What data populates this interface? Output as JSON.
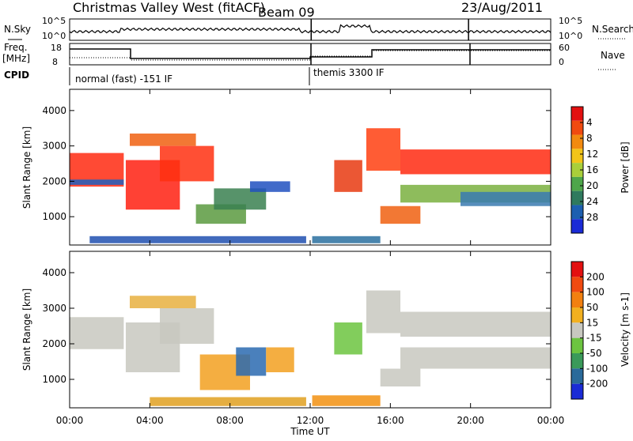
{
  "header": {
    "station": "Christmas Valley West (fitACF)",
    "beam": "Beam 09",
    "date": "23/Aug/2011"
  },
  "noise_panel": {
    "left_label": "N.Sky",
    "left_ticks": [
      "10^5",
      "10^0"
    ],
    "right_ticks": [
      "10^5",
      "10^0"
    ],
    "right_label": "N.Search"
  },
  "freq_panel": {
    "left_label_1": "Freq.",
    "left_label_2": "[MHz]",
    "left_ticks": [
      "18",
      "8"
    ],
    "right_ticks": [
      "60",
      "0"
    ],
    "right_label": "Nave"
  },
  "cpid": {
    "label": "CPID",
    "programs": [
      {
        "name": "normal (fast) -151 IF",
        "start_hour": 0,
        "end_hour": 12
      },
      {
        "name": "themis 3300 IF",
        "start_hour": 12,
        "end_hour": 24
      }
    ]
  },
  "time_axis": {
    "label": "Time UT",
    "ticks": [
      "00:00",
      "04:00",
      "08:00",
      "12:00",
      "16:00",
      "20:00",
      "00:00"
    ]
  },
  "chart_data": [
    {
      "type": "heatmap",
      "name": "power",
      "ylabel": "Slant Range [km]",
      "yticks": [
        1000,
        2000,
        3000,
        4000
      ],
      "ylim": [
        200,
        4600
      ],
      "xlim_hours": [
        0,
        24
      ],
      "colorbar": {
        "label": "Power [dB]",
        "ticks": [
          "4",
          "8",
          "12",
          "16",
          "20",
          "24",
          "28"
        ],
        "colors": [
          "#1a2bd6",
          "#1d5fb0",
          "#2f7a5e",
          "#4ea64a",
          "#a9cf3a",
          "#f2c418",
          "#f28a10",
          "#f04a10",
          "#e31010"
        ]
      },
      "regions": [
        {
          "t0": 0,
          "t1": 2.7,
          "r0": 1850,
          "r1": 2800,
          "color": "#ff2a10"
        },
        {
          "t0": 0,
          "t1": 2.7,
          "r0": 1900,
          "r1": 2050,
          "color": "#2060c0"
        },
        {
          "t0": 2.8,
          "t1": 5.5,
          "r0": 1200,
          "r1": 2600,
          "color": "#ff2010"
        },
        {
          "t0": 3.0,
          "t1": 6.3,
          "r0": 3000,
          "r1": 3350,
          "color": "#f06010"
        },
        {
          "t0": 4.5,
          "t1": 7.2,
          "r0": 2000,
          "r1": 3000,
          "color": "#ff3010"
        },
        {
          "t0": 6.3,
          "t1": 8.8,
          "r0": 800,
          "r1": 1350,
          "color": "#5a9a40"
        },
        {
          "t0": 7.2,
          "t1": 9.8,
          "r0": 1200,
          "r1": 1800,
          "color": "#3a8050"
        },
        {
          "t0": 9.0,
          "t1": 11.0,
          "r0": 1700,
          "r1": 2000,
          "color": "#2050c0"
        },
        {
          "t0": 1.0,
          "t1": 11.8,
          "r0": 250,
          "r1": 450,
          "color": "#2050b0"
        },
        {
          "t0": 12.1,
          "t1": 15.5,
          "r0": 250,
          "r1": 450,
          "color": "#2a70a0"
        },
        {
          "t0": 13.2,
          "t1": 14.6,
          "r0": 1700,
          "r1": 2600,
          "color": "#e83a10"
        },
        {
          "t0": 14.8,
          "t1": 16.5,
          "r0": 2300,
          "r1": 3500,
          "color": "#ff4010"
        },
        {
          "t0": 16.5,
          "t1": 24,
          "r0": 2200,
          "r1": 2900,
          "color": "#ff2a10"
        },
        {
          "t0": 16.5,
          "t1": 24,
          "r0": 1400,
          "r1": 1900,
          "color": "#7ab040"
        },
        {
          "t0": 15.5,
          "t1": 17.5,
          "r0": 800,
          "r1": 1300,
          "color": "#f06010"
        },
        {
          "t0": 19.5,
          "t1": 24,
          "r0": 1300,
          "r1": 1700,
          "color": "#3a7ab0"
        }
      ]
    },
    {
      "type": "heatmap",
      "name": "velocity",
      "ylabel": "Slant Range [km]",
      "yticks": [
        1000,
        2000,
        3000,
        4000
      ],
      "ylim": [
        200,
        4600
      ],
      "xlim_hours": [
        0,
        24
      ],
      "colorbar": {
        "label": "Velocity [m s-1]",
        "ticks": [
          "200",
          "100",
          "50",
          "15",
          "-15",
          "-50",
          "-100",
          "-200"
        ],
        "colors": [
          "#1a2bd6",
          "#2a6a9a",
          "#3a9a5a",
          "#6cc440",
          "#c8c8c0",
          "#f2b020",
          "#f28010",
          "#f04a10",
          "#e31010"
        ]
      },
      "regions": [
        {
          "t0": 0,
          "t1": 2.7,
          "r0": 1850,
          "r1": 2750,
          "color": "#c8c8c0"
        },
        {
          "t0": 2.8,
          "t1": 5.5,
          "r0": 1200,
          "r1": 2600,
          "color": "#c8c8c0"
        },
        {
          "t0": 4.5,
          "t1": 7.2,
          "r0": 2000,
          "r1": 3000,
          "color": "#c8c8c0"
        },
        {
          "t0": 3.0,
          "t1": 6.3,
          "r0": 3000,
          "r1": 3350,
          "color": "#e8b040"
        },
        {
          "t0": 6.5,
          "t1": 9.0,
          "r0": 700,
          "r1": 1700,
          "color": "#f2a020"
        },
        {
          "t0": 8.3,
          "t1": 9.8,
          "r0": 1100,
          "r1": 1900,
          "color": "#2a6ab0"
        },
        {
          "t0": 9.8,
          "t1": 11.2,
          "r0": 1200,
          "r1": 1900,
          "color": "#f2a020"
        },
        {
          "t0": 4.0,
          "t1": 11.8,
          "r0": 250,
          "r1": 500,
          "color": "#e0a020"
        },
        {
          "t0": 12.1,
          "t1": 15.5,
          "r0": 250,
          "r1": 550,
          "color": "#f29010"
        },
        {
          "t0": 13.2,
          "t1": 14.6,
          "r0": 1700,
          "r1": 2600,
          "color": "#6cc440"
        },
        {
          "t0": 14.8,
          "t1": 16.5,
          "r0": 2300,
          "r1": 3500,
          "color": "#c8c8c0"
        },
        {
          "t0": 16.5,
          "t1": 24,
          "r0": 2200,
          "r1": 2900,
          "color": "#c8c8c0"
        },
        {
          "t0": 16.5,
          "t1": 24,
          "r0": 1300,
          "r1": 1900,
          "color": "#c8c8c0"
        },
        {
          "t0": 15.5,
          "t1": 17.5,
          "r0": 800,
          "r1": 1300,
          "color": "#c8c8c0"
        }
      ]
    }
  ]
}
